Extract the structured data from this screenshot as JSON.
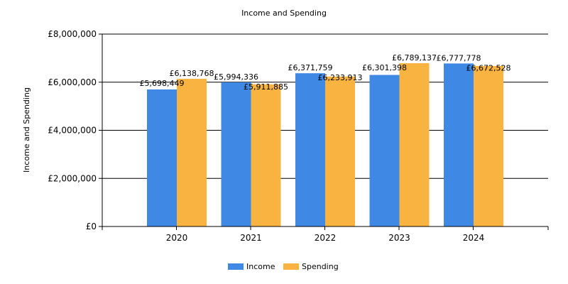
{
  "chart_data": {
    "type": "bar",
    "title": "Income and Spending",
    "ylabel": "Income and Spending",
    "xlabel": "",
    "categories": [
      "2020",
      "2021",
      "2022",
      "2023",
      "2024"
    ],
    "series": [
      {
        "name": "Income",
        "color": "#3f89e5",
        "values": [
          5698449,
          5994336,
          6371759,
          6301398,
          6777778
        ],
        "labels": [
          "£5,698,449",
          "£5,994,336",
          "£6,371,759",
          "£6,301,398",
          "£6,777,778"
        ]
      },
      {
        "name": "Spending",
        "color": "#f8b340",
        "values": [
          6138768,
          5911885,
          6233913,
          6789137,
          6672528
        ],
        "labels": [
          "£6,138,768",
          "£5,911,885",
          "£6,233,913",
          "£6,789,137",
          "£6,672,528"
        ]
      }
    ],
    "ylim": [
      0,
      8000000
    ],
    "yticks": [
      0,
      2000000,
      4000000,
      6000000,
      8000000
    ],
    "ytick_labels": [
      "£0",
      "£2,000,000",
      "£4,000,000",
      "£6,000,000",
      "£8,000,000"
    ],
    "grid": true,
    "legend_position": "bottom-center"
  }
}
